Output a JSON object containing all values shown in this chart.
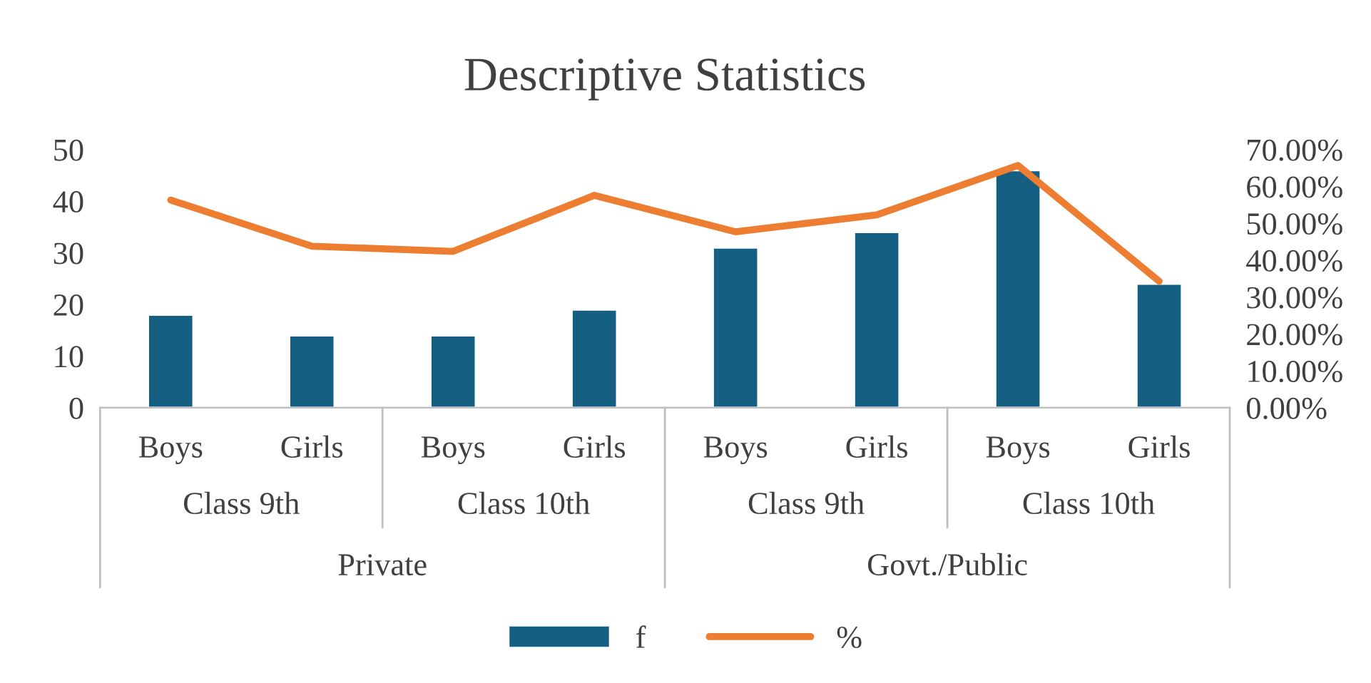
{
  "chart_data": {
    "type": "bar",
    "title": "Descriptive Statistics",
    "categories": [
      "Boys",
      "Girls",
      "Boys",
      "Girls",
      "Boys",
      "Girls",
      "Boys",
      "Girls"
    ],
    "series": [
      {
        "name": "f",
        "color": "#155f83",
        "values": [
          18,
          14,
          14,
          19,
          31,
          34,
          46,
          24
        ]
      },
      {
        "name": "%",
        "type": "line",
        "axis": "y2",
        "color": "#ed7d31",
        "values": [
          56.3,
          43.8,
          42.4,
          57.6,
          47.7,
          52.3,
          65.7,
          34.3
        ]
      }
    ],
    "ylim": [
      0,
      50
    ],
    "yticks": [
      0,
      10,
      20,
      30,
      40,
      50
    ],
    "y2lim": [
      0,
      70
    ],
    "y2ticks": [
      {
        "value": 0,
        "label": "0.00%"
      },
      {
        "value": 10,
        "label": "10.00%"
      },
      {
        "value": 20,
        "label": "20.00%"
      },
      {
        "value": 30,
        "label": "30.00%"
      },
      {
        "value": 40,
        "label": "40.00%"
      },
      {
        "value": 50,
        "label": "50.00%"
      },
      {
        "value": 60,
        "label": "60.00%"
      },
      {
        "value": 70,
        "label": "70.00%"
      }
    ],
    "annotations": [
      "Class 9th",
      "Class 10th",
      "Class 9th",
      "Class 10th",
      "Private",
      "Govt./Public"
    ],
    "legend": "bottom",
    "marker": "none",
    "line_style": "solid"
  }
}
